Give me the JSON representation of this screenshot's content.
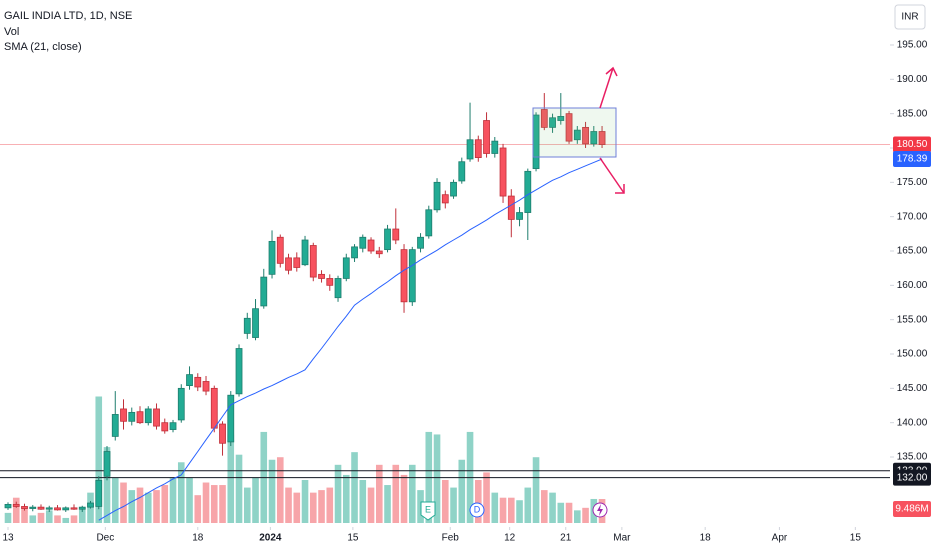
{
  "chart_data": {
    "type": "candlestick",
    "title": "GAIL INDIA LTD, 1D, NSE",
    "currency": "INR",
    "up_color": "#22ab94",
    "down_color": "#f23645",
    "x": [
      0,
      1,
      2,
      3,
      4,
      5,
      6,
      7,
      8,
      9,
      10,
      11,
      12,
      13,
      14,
      15,
      16,
      17,
      18,
      19,
      20,
      21,
      22,
      23,
      24,
      25,
      26,
      27,
      28,
      29,
      30,
      31,
      32,
      33,
      34,
      35,
      36,
      37,
      38,
      39,
      40,
      41,
      42,
      43,
      44,
      45,
      46,
      47,
      48,
      49,
      50,
      51,
      52,
      53,
      54,
      55,
      56,
      57,
      58,
      59,
      60,
      61,
      62,
      63,
      64,
      65,
      66,
      67,
      68,
      69,
      70,
      71,
      72
    ],
    "open": [
      127.6,
      128.1,
      127.8,
      127.5,
      127.7,
      127.4,
      127.6,
      127.3,
      127.6,
      127.4,
      127.7,
      127.8,
      132.2,
      138.0,
      142.0,
      140.2,
      141.6,
      140.0,
      142.0,
      140.0,
      139.0,
      140.4,
      145.4,
      146.6,
      146.0,
      145.0,
      139.8,
      137.2,
      144.2,
      153.0,
      152.4,
      157.0,
      161.6,
      167.0,
      164.0,
      164.0,
      163.0,
      165.8,
      161.6,
      161.0,
      158.2,
      161.0,
      164.0,
      165.4,
      166.6,
      165.0,
      165.2,
      168.2,
      165.2,
      157.6,
      165.4,
      167.2,
      171.0,
      173.2,
      173.0,
      175.2,
      178.4,
      181.2,
      184.0,
      179.2,
      180.0,
      173.0,
      169.6,
      170.6,
      177.0,
      185.6,
      183.0,
      184.0,
      185.0,
      181.2,
      183.0,
      180.6,
      182.4
    ],
    "high": [
      128.4,
      128.5,
      128.2,
      128.0,
      128.1,
      127.9,
      128.0,
      127.8,
      128.1,
      127.9,
      128.6,
      132.2,
      136.6,
      144.6,
      143.4,
      142.2,
      142.4,
      142.4,
      142.8,
      140.6,
      140.4,
      145.6,
      148.2,
      147.2,
      146.8,
      145.4,
      140.2,
      144.6,
      151.4,
      156.0,
      158.0,
      162.4,
      168.0,
      167.4,
      164.6,
      164.8,
      167.2,
      166.2,
      162.2,
      161.6,
      161.4,
      164.6,
      166.0,
      167.4,
      167.0,
      165.6,
      168.8,
      171.2,
      166.0,
      165.6,
      167.6,
      171.6,
      175.6,
      173.8,
      175.4,
      178.6,
      186.6,
      181.8,
      185.2,
      181.6,
      180.6,
      174.0,
      171.4,
      177.0,
      185.2,
      188.0,
      185.0,
      188.0,
      185.4,
      183.2,
      183.8,
      183.2,
      183.2
    ],
    "low": [
      127.3,
      127.6,
      127.2,
      127.1,
      127.3,
      127.0,
      127.2,
      127.0,
      127.3,
      127.0,
      127.5,
      127.4,
      131.6,
      137.4,
      139.0,
      139.6,
      139.8,
      139.6,
      139.0,
      138.4,
      138.6,
      140.0,
      144.8,
      144.6,
      144.0,
      138.6,
      135.2,
      136.6,
      143.8,
      152.2,
      152.0,
      156.6,
      161.0,
      162.6,
      161.6,
      162.0,
      162.8,
      160.6,
      160.4,
      159.2,
      157.6,
      160.6,
      163.4,
      164.8,
      164.6,
      164.0,
      164.8,
      166.0,
      156.0,
      157.0,
      164.8,
      166.8,
      170.6,
      171.2,
      172.6,
      174.8,
      178.0,
      178.0,
      178.6,
      178.6,
      172.0,
      167.0,
      168.6,
      166.6,
      176.6,
      182.6,
      182.2,
      183.4,
      180.6,
      180.6,
      180.0,
      180.2,
      180.0
    ],
    "close": [
      128.1,
      127.8,
      127.5,
      127.7,
      127.4,
      127.6,
      127.3,
      127.6,
      127.4,
      127.7,
      128.3,
      131.6,
      135.8,
      141.2,
      140.2,
      141.5,
      140.0,
      142.0,
      139.5,
      138.8,
      140.0,
      145.0,
      147.0,
      145.2,
      144.6,
      139.2,
      137.0,
      144.0,
      150.8,
      155.2,
      156.6,
      161.2,
      166.4,
      163.2,
      162.2,
      162.6,
      166.6,
      161.2,
      161.0,
      160.0,
      161.0,
      164.0,
      165.6,
      167.0,
      165.0,
      164.6,
      168.2,
      166.6,
      157.6,
      165.2,
      167.0,
      171.0,
      175.0,
      172.0,
      175.0,
      178.0,
      181.2,
      178.6,
      179.2,
      181.0,
      173.0,
      169.6,
      170.6,
      176.6,
      184.8,
      183.0,
      184.4,
      184.6,
      181.0,
      182.6,
      180.6,
      182.4,
      180.5
    ],
    "volume": {
      "name": "Vol",
      "up_color": "#8fd3c7",
      "down_color": "#f7a5a9",
      "vlim": [
        0,
        200
      ],
      "values": [
        4,
        10,
        6,
        3,
        4,
        5,
        3,
        2,
        3,
        6,
        12,
        50,
        30,
        18,
        16,
        13,
        14,
        12,
        13,
        15,
        18,
        24,
        18,
        11,
        16,
        15,
        15,
        35,
        27,
        14,
        18,
        36,
        25,
        26,
        14,
        12,
        17,
        12,
        13,
        14,
        23,
        19,
        28,
        17,
        14,
        23,
        15,
        23,
        19,
        23,
        13,
        36,
        35,
        17,
        14,
        25,
        36,
        17,
        20,
        12,
        10,
        10,
        9,
        14,
        26,
        13,
        12,
        8,
        8,
        5,
        6,
        9.5,
        9.486
      ],
      "last_label": "9.486M"
    },
    "sma": {
      "name": "SMA (21, close)",
      "color": "#2962ff",
      "last_label": "178.39",
      "values": [
        null,
        null,
        null,
        null,
        null,
        null,
        null,
        null,
        null,
        null,
        null,
        125.8,
        126.5,
        127.2,
        127.8,
        128.5,
        129.1,
        129.8,
        130.5,
        131.1,
        131.8,
        132.4,
        134.1,
        135.8,
        137.5,
        139.2,
        140.9,
        142.6,
        143.2,
        143.8,
        144.3,
        144.9,
        145.4,
        146.0,
        146.6,
        147.1,
        147.7,
        149.3,
        150.8,
        152.4,
        154.0,
        155.5,
        157.1,
        158.0,
        158.8,
        159.7,
        160.5,
        161.4,
        162.2,
        162.9,
        163.7,
        164.4,
        165.1,
        165.9,
        166.6,
        167.3,
        168.1,
        168.8,
        169.5,
        170.3,
        171.0,
        171.7,
        172.4,
        173.2,
        173.9,
        174.6,
        175.3,
        175.8,
        176.4,
        176.9,
        177.4,
        177.9,
        178.39
      ]
    },
    "last_price": {
      "value": 180.5,
      "label": "180.50"
    },
    "hlines": [
      {
        "value": 133,
        "label": "133.00"
      },
      {
        "value": 132,
        "label": "132.00"
      }
    ],
    "xlim": [
      -0.97,
      106.9
    ],
    "xticks": [
      {
        "value": 0,
        "label": "13"
      },
      {
        "value": 11.8,
        "label": "Dec"
      },
      {
        "value": 23,
        "label": "18"
      },
      {
        "value": 31.8,
        "label": "2024"
      },
      {
        "value": 41.8,
        "label": "15"
      },
      {
        "value": 53.6,
        "label": "Feb"
      },
      {
        "value": 60.8,
        "label": "12"
      },
      {
        "value": 67.6,
        "label": "21"
      },
      {
        "value": 74.4,
        "label": "Mar"
      },
      {
        "value": 84.5,
        "label": "18"
      },
      {
        "value": 93.5,
        "label": "Apr"
      },
      {
        "value": 102.7,
        "label": "15"
      }
    ],
    "ylim": [
      125.1,
      201.55
    ],
    "yticks": [
      {
        "value": 135,
        "label": "135.00"
      },
      {
        "value": 140,
        "label": "140.00"
      },
      {
        "value": 145,
        "label": "145.00"
      },
      {
        "value": 150,
        "label": "150.00"
      },
      {
        "value": 155,
        "label": "155.00"
      },
      {
        "value": 160,
        "label": "160.00"
      },
      {
        "value": 165,
        "label": "165.00"
      },
      {
        "value": 170,
        "label": "170.00"
      },
      {
        "value": 175,
        "label": "175.00"
      },
      {
        "value": 180,
        "label": "180.00"
      },
      {
        "value": 185,
        "label": "185.00"
      },
      {
        "value": 190,
        "label": "190.00"
      },
      {
        "value": 195,
        "label": "195.00"
      }
    ]
  }
}
